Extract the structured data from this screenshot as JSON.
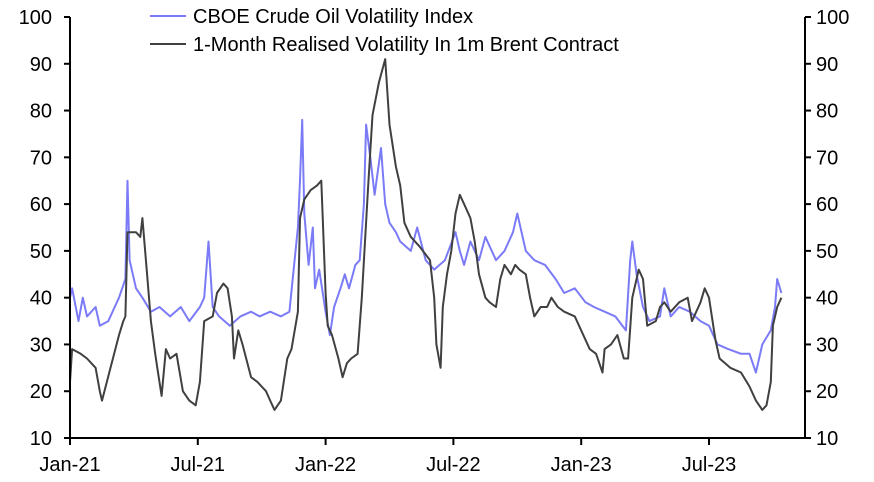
{
  "chart_data": {
    "type": "line",
    "title": "",
    "xlabel": "",
    "ylabel": "",
    "x_unit": "months since Jan-21",
    "xlim": [
      0,
      34.5
    ],
    "ylim": [
      10,
      100
    ],
    "y_ticks": [
      10,
      20,
      30,
      40,
      50,
      60,
      70,
      80,
      90,
      100
    ],
    "x_ticks": [
      {
        "month": 0,
        "label": "Jan-21"
      },
      {
        "month": 6,
        "label": "Jul-21"
      },
      {
        "month": 12,
        "label": "Jan-22"
      },
      {
        "month": 18,
        "label": "Jul-22"
      },
      {
        "month": 24,
        "label": "Jan-23"
      },
      {
        "month": 30,
        "label": "Jul-23"
      }
    ],
    "grid": false,
    "legend_position": "top-center",
    "series": [
      {
        "name": "CBOE Crude Oil Volatility Index",
        "color": "#7b7bf7",
        "points": [
          [
            0,
            40
          ],
          [
            0.1,
            42
          ],
          [
            0.4,
            35
          ],
          [
            0.6,
            40
          ],
          [
            0.8,
            36
          ],
          [
            1.2,
            38
          ],
          [
            1.4,
            34
          ],
          [
            1.8,
            35
          ],
          [
            2.1,
            38
          ],
          [
            2.3,
            40
          ],
          [
            2.6,
            44
          ],
          [
            2.7,
            65
          ],
          [
            2.8,
            48
          ],
          [
            3.1,
            42
          ],
          [
            3.4,
            40
          ],
          [
            3.8,
            37
          ],
          [
            4.2,
            38
          ],
          [
            4.7,
            36
          ],
          [
            5.2,
            38
          ],
          [
            5.6,
            35
          ],
          [
            6.1,
            38
          ],
          [
            6.3,
            40
          ],
          [
            6.5,
            52
          ],
          [
            6.7,
            38
          ],
          [
            7.0,
            36
          ],
          [
            7.5,
            34
          ],
          [
            8.0,
            36
          ],
          [
            8.5,
            37
          ],
          [
            8.9,
            36
          ],
          [
            9.4,
            37
          ],
          [
            9.9,
            36
          ],
          [
            10.3,
            37
          ],
          [
            10.7,
            55
          ],
          [
            10.8,
            65
          ],
          [
            10.9,
            78
          ],
          [
            11.0,
            58
          ],
          [
            11.2,
            47
          ],
          [
            11.4,
            55
          ],
          [
            11.5,
            42
          ],
          [
            11.7,
            46
          ],
          [
            12.0,
            37
          ],
          [
            12.2,
            32
          ],
          [
            12.4,
            38
          ],
          [
            12.7,
            42
          ],
          [
            12.9,
            45
          ],
          [
            13.1,
            42
          ],
          [
            13.4,
            47
          ],
          [
            13.6,
            48
          ],
          [
            13.8,
            60
          ],
          [
            13.9,
            77
          ],
          [
            14.1,
            70
          ],
          [
            14.3,
            62
          ],
          [
            14.6,
            72
          ],
          [
            14.8,
            60
          ],
          [
            15.0,
            56
          ],
          [
            15.3,
            54
          ],
          [
            15.5,
            52
          ],
          [
            16.0,
            50
          ],
          [
            16.3,
            55
          ],
          [
            16.7,
            48
          ],
          [
            17.1,
            46
          ],
          [
            17.6,
            48
          ],
          [
            18.1,
            54
          ],
          [
            18.3,
            50
          ],
          [
            18.5,
            47
          ],
          [
            18.8,
            52
          ],
          [
            19.2,
            48
          ],
          [
            19.5,
            53
          ],
          [
            20.0,
            48
          ],
          [
            20.4,
            50
          ],
          [
            20.8,
            54
          ],
          [
            21.0,
            58
          ],
          [
            21.4,
            50
          ],
          [
            21.8,
            48
          ],
          [
            22.3,
            47
          ],
          [
            22.8,
            44
          ],
          [
            23.2,
            41
          ],
          [
            23.7,
            42
          ],
          [
            24.2,
            39
          ],
          [
            24.6,
            38
          ],
          [
            25.1,
            37
          ],
          [
            25.6,
            36
          ],
          [
            26.1,
            33
          ],
          [
            26.3,
            48
          ],
          [
            26.4,
            52
          ],
          [
            26.6,
            45
          ],
          [
            26.9,
            38
          ],
          [
            27.2,
            35
          ],
          [
            27.7,
            36
          ],
          [
            27.9,
            42
          ],
          [
            28.2,
            36
          ],
          [
            28.6,
            38
          ],
          [
            29.1,
            37
          ],
          [
            29.6,
            35
          ],
          [
            30.0,
            34
          ],
          [
            30.4,
            30
          ],
          [
            30.9,
            29
          ],
          [
            31.5,
            28
          ],
          [
            31.9,
            28
          ],
          [
            32.2,
            24
          ],
          [
            32.5,
            30
          ],
          [
            32.9,
            33
          ],
          [
            33.1,
            38
          ],
          [
            33.2,
            44
          ],
          [
            33.4,
            41
          ]
        ]
      },
      {
        "name": "1-Month Realised Volatility In 1m Brent Contract",
        "color": "#404040",
        "points": [
          [
            0,
            22
          ],
          [
            0.1,
            29
          ],
          [
            0.5,
            28
          ],
          [
            0.8,
            27
          ],
          [
            1.2,
            25
          ],
          [
            1.4,
            20
          ],
          [
            1.5,
            18
          ],
          [
            1.9,
            25
          ],
          [
            2.3,
            32
          ],
          [
            2.5,
            35
          ],
          [
            2.6,
            36
          ],
          [
            2.7,
            54
          ],
          [
            3.1,
            54
          ],
          [
            3.3,
            53
          ],
          [
            3.4,
            57
          ],
          [
            3.6,
            46
          ],
          [
            3.8,
            35
          ],
          [
            4.0,
            28
          ],
          [
            4.1,
            25
          ],
          [
            4.3,
            19
          ],
          [
            4.5,
            29
          ],
          [
            4.7,
            27
          ],
          [
            5.0,
            28
          ],
          [
            5.3,
            20
          ],
          [
            5.6,
            18
          ],
          [
            5.9,
            17
          ],
          [
            6.1,
            22
          ],
          [
            6.3,
            35
          ],
          [
            6.7,
            36
          ],
          [
            6.9,
            41
          ],
          [
            7.2,
            43
          ],
          [
            7.4,
            42
          ],
          [
            7.6,
            36
          ],
          [
            7.7,
            27
          ],
          [
            7.9,
            33
          ],
          [
            8.1,
            30
          ],
          [
            8.5,
            23
          ],
          [
            8.8,
            22
          ],
          [
            9.2,
            20
          ],
          [
            9.4,
            18
          ],
          [
            9.6,
            16
          ],
          [
            9.9,
            18
          ],
          [
            10.2,
            27
          ],
          [
            10.4,
            29
          ],
          [
            10.7,
            37
          ],
          [
            10.8,
            57
          ],
          [
            11.0,
            61
          ],
          [
            11.3,
            63
          ],
          [
            11.6,
            64
          ],
          [
            11.8,
            65
          ],
          [
            12.0,
            41
          ],
          [
            12.1,
            34
          ],
          [
            12.3,
            32
          ],
          [
            12.6,
            27
          ],
          [
            12.8,
            23
          ],
          [
            13.0,
            26
          ],
          [
            13.2,
            27
          ],
          [
            13.5,
            28
          ],
          [
            13.7,
            40
          ],
          [
            14.0,
            64
          ],
          [
            14.2,
            79
          ],
          [
            14.5,
            86
          ],
          [
            14.8,
            91
          ],
          [
            15.0,
            77
          ],
          [
            15.3,
            68
          ],
          [
            15.5,
            64
          ],
          [
            15.7,
            56
          ],
          [
            16.0,
            53
          ],
          [
            16.4,
            51
          ],
          [
            16.9,
            48
          ],
          [
            17.1,
            40
          ],
          [
            17.2,
            30
          ],
          [
            17.4,
            25
          ],
          [
            17.5,
            38
          ],
          [
            17.7,
            45
          ],
          [
            17.9,
            50
          ],
          [
            18.1,
            58
          ],
          [
            18.3,
            62
          ],
          [
            18.5,
            60
          ],
          [
            18.8,
            57
          ],
          [
            19.0,
            52
          ],
          [
            19.2,
            45
          ],
          [
            19.5,
            40
          ],
          [
            19.7,
            39
          ],
          [
            20.0,
            38
          ],
          [
            20.2,
            44
          ],
          [
            20.4,
            47
          ],
          [
            20.7,
            45
          ],
          [
            20.9,
            47
          ],
          [
            21.1,
            46
          ],
          [
            21.4,
            45
          ],
          [
            21.6,
            40
          ],
          [
            21.8,
            36
          ],
          [
            22.1,
            38
          ],
          [
            22.4,
            38
          ],
          [
            22.6,
            40
          ],
          [
            22.9,
            38
          ],
          [
            23.2,
            37
          ],
          [
            23.7,
            36
          ],
          [
            24.0,
            33
          ],
          [
            24.4,
            29
          ],
          [
            24.7,
            28
          ],
          [
            25.0,
            24
          ],
          [
            25.1,
            29
          ],
          [
            25.4,
            30
          ],
          [
            25.7,
            32
          ],
          [
            26.0,
            27
          ],
          [
            26.2,
            27
          ],
          [
            26.4,
            40
          ],
          [
            26.7,
            46
          ],
          [
            26.9,
            44
          ],
          [
            27.1,
            34
          ],
          [
            27.5,
            35
          ],
          [
            27.7,
            38
          ],
          [
            27.9,
            39
          ],
          [
            28.2,
            37
          ],
          [
            28.6,
            39
          ],
          [
            29.0,
            40
          ],
          [
            29.2,
            35
          ],
          [
            29.6,
            39
          ],
          [
            29.8,
            42
          ],
          [
            30.0,
            40
          ],
          [
            30.3,
            31
          ],
          [
            30.5,
            27
          ],
          [
            31.0,
            25
          ],
          [
            31.5,
            24
          ],
          [
            31.9,
            21
          ],
          [
            32.2,
            18
          ],
          [
            32.5,
            16
          ],
          [
            32.7,
            17
          ],
          [
            32.9,
            22
          ],
          [
            33.0,
            34
          ],
          [
            33.2,
            38
          ],
          [
            33.4,
            40
          ]
        ]
      }
    ]
  }
}
